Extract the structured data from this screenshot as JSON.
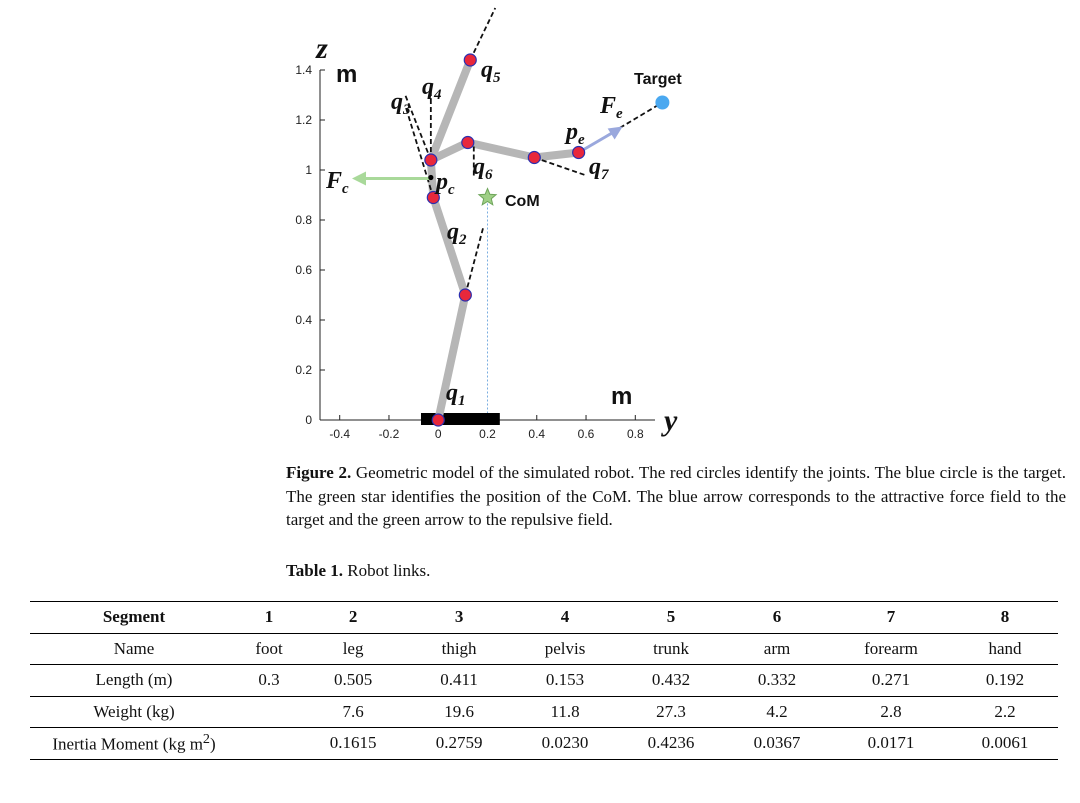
{
  "chart_data": {
    "type": "diagram",
    "title": "",
    "xlabel": "y",
    "ylabel": "z",
    "x_unit": "m",
    "y_unit": "m",
    "xlim": [
      -0.48,
      0.88
    ],
    "ylim": [
      0,
      1.4
    ],
    "x_ticks": [
      "-0.4",
      "-0.2",
      "0",
      "0.2",
      "0.4",
      "0.6",
      "0.8"
    ],
    "y_ticks": [
      "0",
      "0.2",
      "0.4",
      "0.6",
      "0.8",
      "1",
      "1.2",
      "1.4"
    ],
    "x_tick_values": [
      -0.4,
      -0.2,
      0,
      0.2,
      0.4,
      0.6,
      0.8
    ],
    "y_tick_values": [
      0,
      0.2,
      0.4,
      0.6,
      0.8,
      1.0,
      1.2,
      1.4
    ],
    "base_bar": [
      -0.07,
      0.25
    ],
    "joints": [
      {
        "y": 0.0,
        "z": 0.0
      },
      {
        "y": 0.11,
        "z": 0.5
      },
      {
        "y": -0.02,
        "z": 0.89
      },
      {
        "y": -0.03,
        "z": 1.04
      },
      {
        "y": 0.13,
        "z": 1.44
      },
      {
        "y": 0.12,
        "z": 1.11
      },
      {
        "y": 0.39,
        "z": 1.05
      },
      {
        "y": 0.57,
        "z": 1.07
      }
    ],
    "links": [
      [
        0,
        1
      ],
      [
        1,
        2
      ],
      [
        2,
        3
      ],
      [
        3,
        4
      ],
      [
        3,
        5
      ],
      [
        5,
        6
      ],
      [
        6,
        7
      ]
    ],
    "target": {
      "label": "Target",
      "y": 0.91,
      "z": 1.27
    },
    "com": {
      "label": "CoM",
      "y": 0.2,
      "z": 0.89
    },
    "pc": {
      "y": -0.03,
      "z": 0.97
    },
    "colors": {
      "link": "#b6b6b6",
      "joint": "#e8283b",
      "joint_stroke": "#2a2fb0",
      "target": "#4aa8f0",
      "com": "#9fcf86",
      "fe_arrow": "#9aa8dd",
      "fc_arrow": "#a9d99a"
    },
    "labels": {
      "q1": {
        "main": "q",
        "sub": "1"
      },
      "q2": {
        "main": "q",
        "sub": "2"
      },
      "q3": {
        "main": "q",
        "sub": "3"
      },
      "q4": {
        "main": "q",
        "sub": "4"
      },
      "q5": {
        "main": "q",
        "sub": "5"
      },
      "q6": {
        "main": "q",
        "sub": "6"
      },
      "q7": {
        "main": "q",
        "sub": "7"
      },
      "pc": {
        "main": "p",
        "sub": "c"
      },
      "pe": {
        "main": "p",
        "sub": "e"
      },
      "fc": {
        "main": "F",
        "sub": "c"
      },
      "fe": {
        "main": "F",
        "sub": "e"
      }
    }
  },
  "caption": {
    "label": "Figure 2.",
    "text": " Geometric model of the simulated robot. The red circles identify the joints. The blue circle is the target. The green star identifies the position of the CoM. The blue arrow corresponds to the attractive force field to the target and the green arrow to the repulsive field."
  },
  "table": {
    "caption_label": "Table 1.",
    "caption_text": " Robot links.",
    "header": [
      "Segment",
      "1",
      "2",
      "3",
      "4",
      "5",
      "6",
      "7",
      "8"
    ],
    "rows": [
      [
        "Name",
        "foot",
        "leg",
        "thigh",
        "pelvis",
        "trunk",
        "arm",
        "forearm",
        "hand"
      ],
      [
        "Length (m)",
        "0.3",
        "0.505",
        "0.411",
        "0.153",
        "0.432",
        "0.332",
        "0.271",
        "0.192"
      ],
      [
        "Weight (kg)",
        "",
        "7.6",
        "19.6",
        "11.8",
        "27.3",
        "4.2",
        "2.8",
        "2.2"
      ],
      [
        "Inertia Moment (kg m",
        "",
        "0.1615",
        "0.2759",
        "0.0230",
        "0.4236",
        "0.0367",
        "0.0171",
        "0.0061"
      ]
    ],
    "inertia_unit_sup": "2",
    "inertia_unit_close": ")"
  }
}
